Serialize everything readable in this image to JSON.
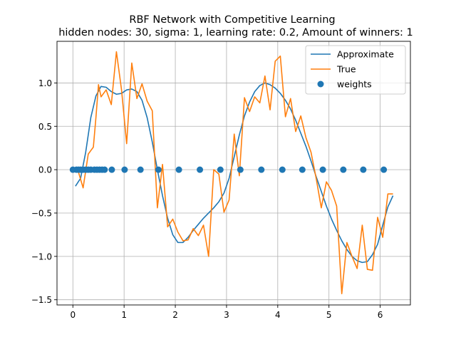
{
  "chart_data": {
    "type": "line",
    "title": "RBF Network with Competitive Learning",
    "subtitle": "hidden nodes: 30, sigma: 1, learning rate: 0.2, Amount of winners: 1",
    "xlabel": "",
    "ylabel": "",
    "xlim": [
      -0.31,
      6.59
    ],
    "ylim": [
      -1.56,
      1.48
    ],
    "xticks": [
      0,
      1,
      2,
      3,
      4,
      5,
      6
    ],
    "yticks": [
      -1.5,
      -1.0,
      -0.5,
      0.0,
      0.5,
      1.0
    ],
    "ytick_labels": [
      "−1.5",
      "−1.0",
      "−0.5",
      "0.0",
      "0.5",
      "1.0"
    ],
    "grid": true,
    "legend_position": "upper right",
    "series": [
      {
        "name": "Approximate",
        "kind": "line",
        "color": "#1f77b4",
        "x": [
          0.05,
          0.15,
          0.25,
          0.35,
          0.45,
          0.55,
          0.65,
          0.75,
          0.85,
          0.95,
          1.05,
          1.15,
          1.25,
          1.35,
          1.45,
          1.55,
          1.65,
          1.75,
          1.85,
          1.95,
          2.05,
          2.15,
          2.25,
          2.35,
          2.45,
          2.55,
          2.65,
          2.75,
          2.85,
          2.95,
          3.05,
          3.15,
          3.25,
          3.35,
          3.45,
          3.55,
          3.65,
          3.75,
          3.85,
          3.95,
          4.05,
          4.15,
          4.25,
          4.35,
          4.45,
          4.55,
          4.65,
          4.75,
          4.85,
          4.95,
          5.05,
          5.15,
          5.25,
          5.35,
          5.45,
          5.55,
          5.65,
          5.75,
          5.85,
          5.95,
          6.05,
          6.15,
          6.25
        ],
        "y": [
          -0.19,
          -0.1,
          0.2,
          0.6,
          0.85,
          0.96,
          0.95,
          0.9,
          0.87,
          0.88,
          0.92,
          0.93,
          0.9,
          0.8,
          0.6,
          0.32,
          0.0,
          -0.3,
          -0.56,
          -0.75,
          -0.84,
          -0.84,
          -0.78,
          -0.7,
          -0.63,
          -0.56,
          -0.5,
          -0.44,
          -0.37,
          -0.27,
          -0.1,
          0.15,
          0.4,
          0.62,
          0.78,
          0.9,
          0.97,
          1.0,
          0.98,
          0.94,
          0.88,
          0.8,
          0.7,
          0.57,
          0.42,
          0.27,
          0.1,
          -0.08,
          -0.25,
          -0.42,
          -0.57,
          -0.7,
          -0.82,
          -0.92,
          -1.0,
          -1.05,
          -1.07,
          -1.06,
          -0.98,
          -0.86,
          -0.64,
          -0.43,
          -0.3
        ]
      },
      {
        "name": "True",
        "kind": "line",
        "color": "#ff7f0e",
        "x": [
          0.0,
          0.1,
          0.2,
          0.3,
          0.4,
          0.45,
          0.5,
          0.55,
          0.65,
          0.75,
          0.85,
          0.95,
          1.05,
          1.15,
          1.25,
          1.35,
          1.45,
          1.55,
          1.65,
          1.75,
          1.85,
          1.95,
          2.05,
          2.15,
          2.25,
          2.35,
          2.45,
          2.55,
          2.65,
          2.75,
          2.85,
          2.95,
          3.05,
          3.15,
          3.25,
          3.35,
          3.45,
          3.55,
          3.65,
          3.75,
          3.85,
          3.95,
          4.05,
          4.15,
          4.25,
          4.35,
          4.45,
          4.55,
          4.65,
          4.75,
          4.85,
          4.95,
          5.05,
          5.15,
          5.25,
          5.35,
          5.45,
          5.55,
          5.65,
          5.75,
          5.85,
          5.95,
          6.05,
          6.15,
          6.25
        ],
        "y": [
          -0.01,
          -0.01,
          -0.21,
          0.18,
          0.26,
          0.6,
          0.98,
          0.84,
          0.92,
          0.75,
          1.36,
          0.92,
          0.3,
          1.23,
          0.82,
          0.99,
          0.79,
          0.68,
          -0.44,
          0.06,
          -0.66,
          -0.57,
          -0.72,
          -0.82,
          -0.81,
          -0.68,
          -0.76,
          -0.64,
          -1.0,
          0.0,
          -0.05,
          -0.49,
          -0.35,
          0.41,
          -0.07,
          0.83,
          0.67,
          0.84,
          0.77,
          1.08,
          0.69,
          1.25,
          1.31,
          0.61,
          0.82,
          0.44,
          0.62,
          0.37,
          0.2,
          -0.1,
          -0.44,
          -0.14,
          -0.24,
          -0.42,
          -1.43,
          -0.84,
          -1.0,
          -1.14,
          -0.64,
          -1.15,
          -1.16,
          -0.55,
          -0.78,
          -0.28,
          -0.28
        ]
      },
      {
        "name": "weights",
        "kind": "scatter",
        "color": "#1f77b4",
        "x": [
          0.0,
          0.07,
          0.11,
          0.15,
          0.2,
          0.25,
          0.3,
          0.35,
          0.42,
          0.47,
          0.52,
          0.57,
          0.62,
          0.76,
          1.01,
          1.32,
          1.67,
          2.07,
          2.48,
          2.88,
          3.27,
          3.68,
          4.09,
          4.48,
          4.88,
          5.28,
          5.67,
          6.07
        ],
        "y": [
          0.0,
          0.0,
          0.0,
          0.0,
          0.0,
          0.0,
          0.0,
          0.0,
          0.0,
          0.0,
          0.0,
          0.0,
          0.0,
          0.0,
          0.0,
          0.0,
          0.0,
          0.0,
          0.0,
          0.0,
          0.0,
          0.0,
          0.0,
          0.0,
          0.0,
          0.0,
          0.0,
          0.0
        ]
      }
    ]
  }
}
